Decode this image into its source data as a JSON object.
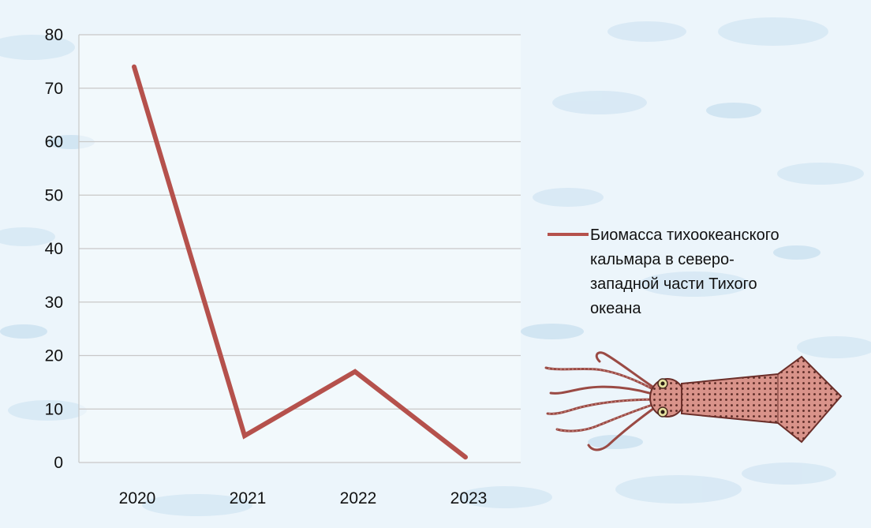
{
  "chart_data": {
    "type": "line",
    "categories": [
      "2020",
      "2021",
      "2022",
      "2023"
    ],
    "series": [
      {
        "name": "Биомасса тихоокеанского кальмара в северо-западной части Тихого океана",
        "values": [
          74,
          5,
          17,
          1
        ]
      }
    ],
    "ylim": [
      0,
      80
    ],
    "yticks": [
      "0",
      "10",
      "20",
      "30",
      "40",
      "50",
      "60",
      "70",
      "80"
    ],
    "grid": true,
    "legend_position": "right",
    "line_color": "#b5514c",
    "grid_color": "#c8c8c8"
  },
  "illustration": {
    "icon": "squid-icon"
  },
  "background": {
    "pattern": "fish-pattern"
  }
}
